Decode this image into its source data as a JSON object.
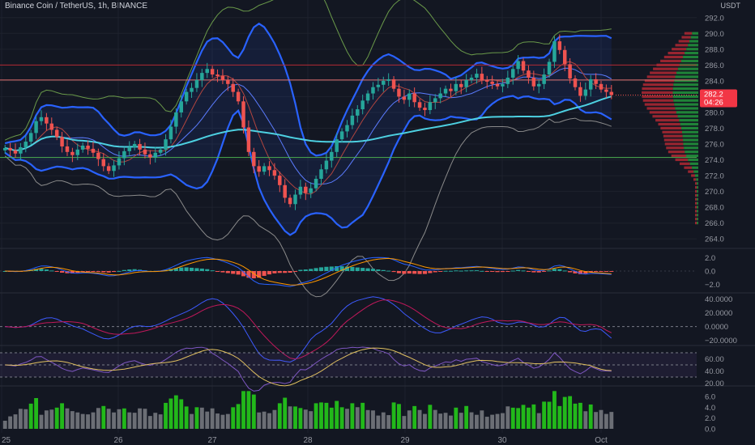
{
  "header": {
    "title": "Binance Coin / TetherUS, 1h, BINANCE",
    "currency": "USDT"
  },
  "price_badge": {
    "price": "282.2",
    "countdown": "04:26"
  },
  "colors": {
    "background": "#131722",
    "grid": "#1e222d",
    "up": "#26a69a",
    "down": "#ef5350",
    "bollinger": "#2962ff",
    "ma_cyan": "#4dd0e1",
    "volume_up": "#22b81a",
    "volume_flat": "#6b6e75",
    "rsi": "#7e57c2",
    "rsi_ma": "#e0c060"
  },
  "chart_data": [
    {
      "type": "line",
      "name": "price-pane",
      "title": "Binance Coin / TetherUS, 1h, BINANCE",
      "x_ticks": [
        "25",
        "26",
        "27",
        "28",
        "29",
        "30",
        "Oct"
      ],
      "y_ticks": [
        "292.0",
        "290.0",
        "288.0",
        "286.0",
        "284.0",
        "282.0",
        "280.0",
        "278.0",
        "276.0",
        "274.0",
        "272.0",
        "270.0",
        "268.0",
        "266.0",
        "264.0"
      ],
      "ylim": [
        263,
        293
      ],
      "series": [
        {
          "values": [
            275.5,
            275.2,
            274.8,
            275.6,
            276.3,
            277.4,
            278.9,
            279.4,
            278.6,
            277.8,
            276.9,
            275.7,
            275.0,
            274.6,
            275.3,
            275.8,
            275.4,
            274.9,
            274.1,
            273.2,
            272.6,
            273.3,
            274.2,
            275.1,
            275.6,
            276.0,
            275.3,
            274.7,
            274.3,
            274.9,
            275.3,
            276.6,
            278.2,
            280.0,
            281.4,
            282.6,
            283.1,
            284.1,
            285.0,
            285.5,
            284.8,
            284.6,
            284.1,
            283.6,
            282.6,
            281.4,
            278.1,
            275.0,
            273.2,
            272.5,
            273.2,
            272.7,
            272.0,
            270.8,
            269.2,
            268.4,
            269.6,
            270.6,
            269.8,
            270.4,
            271.6,
            272.8,
            273.9,
            275.0,
            276.6,
            277.6,
            278.4,
            279.6,
            280.4,
            281.5,
            282.4,
            283.2,
            283.5,
            284.0,
            284.2,
            283.0,
            282.0,
            281.6,
            282.4,
            281.3,
            280.6,
            280.3,
            281.3,
            281.8,
            282.4,
            283.0,
            282.7,
            283.6,
            283.2,
            284.1,
            284.4,
            284.9,
            284.1,
            283.9,
            283.6,
            283.3,
            283.6,
            284.4,
            285.5,
            286.5,
            285.3,
            284.4,
            283.3,
            283.6,
            284.8,
            286.4,
            289.0,
            287.9,
            286.1,
            284.3,
            283.2,
            282.1,
            282.9,
            284.2,
            283.6,
            282.9,
            282.6,
            282.2
          ]
        }
      ],
      "horizontal_levels": [
        286.0,
        284.1,
        274.3
      ]
    },
    {
      "type": "bar",
      "name": "macd-pane",
      "y_ticks": [
        "2.0",
        "0.0",
        "−2.0"
      ],
      "ylim": [
        -3,
        3
      ]
    },
    {
      "type": "line",
      "name": "dmi-pane",
      "y_ticks": [
        "40.0000",
        "20.0000",
        "0.0000",
        "−20.0000"
      ],
      "ylim": [
        -25,
        45
      ]
    },
    {
      "type": "line",
      "name": "rsi-pane",
      "y_ticks": [
        "60.00",
        "40.00",
        "20.00"
      ],
      "ylim": [
        18,
        78
      ]
    },
    {
      "type": "bar",
      "name": "volume-pane",
      "y_ticks": [
        "6.0",
        "4.0",
        "2.0",
        "0.0"
      ],
      "ylim": [
        0,
        7.5
      ]
    }
  ]
}
